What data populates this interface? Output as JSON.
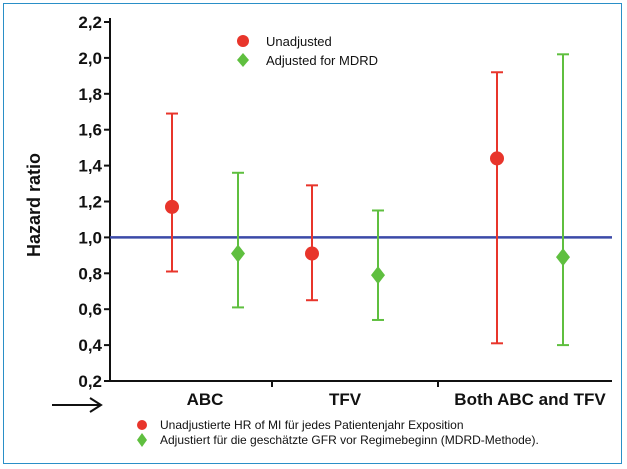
{
  "chart_data": {
    "type": "scatter",
    "ylabel": "Hazard ratio",
    "ylim": [
      0.2,
      2.2
    ],
    "yticks": [
      "0,2",
      "0,4",
      "0,6",
      "0,8",
      "1,0",
      "1,2",
      "1,4",
      "1,6",
      "1,8",
      "2,0",
      "2,2"
    ],
    "categories": [
      "ABC",
      "TFV",
      "Both ABC and TFV"
    ],
    "reference_line": 1.0,
    "series": [
      {
        "name": "Unadjusted",
        "color": "#e8352b",
        "marker": "circle",
        "values": [
          1.17,
          0.91,
          1.44
        ],
        "lower": [
          0.81,
          0.65,
          0.41
        ],
        "upper": [
          1.69,
          1.29,
          1.92
        ]
      },
      {
        "name": "Adjusted for MDRD",
        "color": "#5fbf3f",
        "marker": "diamond",
        "values": [
          0.91,
          0.79,
          0.89
        ],
        "lower": [
          0.61,
          0.54,
          0.4
        ],
        "upper": [
          1.36,
          1.15,
          2.02
        ]
      }
    ],
    "reference_line_color": "#3b4aa8",
    "legend_position": "top-center"
  },
  "footnotes": [
    {
      "color": "#e8352b",
      "marker": "circle",
      "text": "Unadjustierte HR of MI für jedes Patientenjahr Exposition"
    },
    {
      "color": "#5fbf3f",
      "marker": "diamond",
      "text": "Adjustiert für die geschätzte GFR vor Regimebeginn (MDRD-Methode)."
    }
  ],
  "arrow": "right-arrow-icon"
}
